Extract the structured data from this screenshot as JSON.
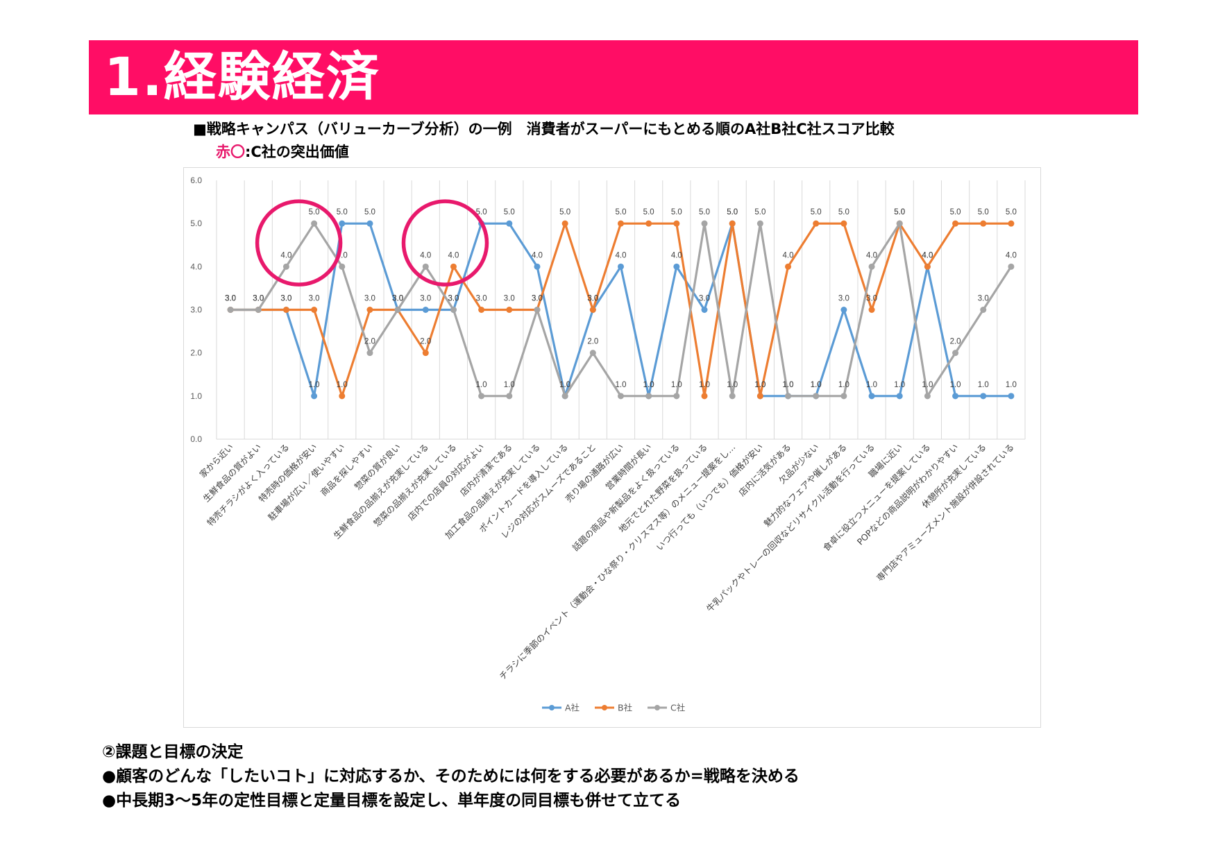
{
  "header": {
    "title": "1.経験経済"
  },
  "subtitle": {
    "line1": "■戦略キャンパス（バリューカーブ分析）の一例　消費者がスーパーにもとめる順のA社B社C社スコア比較",
    "line2_red": "赤〇",
    "line2_rest": ":C社の突出価値"
  },
  "colors": {
    "header_bg": "#ff0d65",
    "highlight_circle": "#e8196c",
    "series_a": "#5b9bd5",
    "series_b": "#ed7d31",
    "series_c": "#a5a5a5"
  },
  "chart_data": {
    "type": "line",
    "categories": [
      "家から近い",
      "生鮮食品の質がよい",
      "特売チラシがよく入っている",
      "特売時の価格が安い",
      "駐車場が広い／使いやすい",
      "商品を探しやすい",
      "惣菜の質が良い",
      "生鮮食品の品揃えが充実している",
      "惣菜の品揃えが充実している",
      "店内での店員の対応がよい",
      "店内が清潔である",
      "加工食品の品揃えが充実している",
      "ポイントカードを導入している",
      "レジの対応がスムーズであること",
      "売り場の通路が広い",
      "営業時間が長い",
      "話題の商品や新製品をよく扱っている",
      "地元でとれた野菜を扱っている",
      "チラシに季節のイベント（運動会・ひな祭り・クリスマス等）のメニュー提案をし…",
      "いつ行っても（いつでも）価格が安い",
      "店内に活気がある",
      "欠品が少ない",
      "魅力的なフェアや催しがある",
      "牛乳パックやトレーの回収などリサイクル活動を行っている",
      "職場に近い",
      "食卓に役立つメニューを提案している",
      "POPなどの商品説明がわかりやすい",
      "休憩所が充実している",
      "専門店やアミューズメント施設が併設されている"
    ],
    "series": [
      {
        "name": "A社",
        "values": [
          3,
          3,
          3,
          1,
          5,
          5,
          3,
          3,
          3,
          5,
          5,
          4,
          1,
          3,
          4,
          1,
          4,
          3,
          5,
          1,
          1,
          1,
          3,
          1,
          1,
          4,
          1,
          1,
          1
        ]
      },
      {
        "name": "B社",
        "values": [
          3,
          3,
          3,
          3,
          1,
          3,
          3,
          2,
          4,
          3,
          3,
          3,
          5,
          3,
          5,
          5,
          5,
          1,
          5,
          1,
          4,
          5,
          5,
          3,
          5,
          4,
          5,
          5,
          5
        ]
      },
      {
        "name": "C社",
        "values": [
          3,
          3,
          4,
          5,
          4,
          2,
          3,
          4,
          3,
          1,
          1,
          3,
          1,
          2,
          1,
          1,
          1,
          5,
          1,
          5,
          1,
          1,
          1,
          4,
          5,
          1,
          2,
          3,
          4
        ]
      }
    ],
    "ylim": [
      0,
      6
    ],
    "yticks": [
      "0.0",
      "1.0",
      "2.0",
      "3.0",
      "4.0",
      "5.0",
      "6.0"
    ],
    "value_label_format": "0.0",
    "grid": "vertical category gridlines",
    "legend": "bottom",
    "highlight_circles": [
      "特売時の価格が安い",
      "惣菜の品揃えが充実している"
    ]
  },
  "bottom": {
    "line1": "②課題と目標の決定",
    "line2": "●顧客のどんな「したいコト」に対応するか、そのためには何をする必要があるか=戦略を決める",
    "line3": "●中長期3～5年の定性目標と定量目標を設定し、単年度の同目標も併せて立てる"
  }
}
